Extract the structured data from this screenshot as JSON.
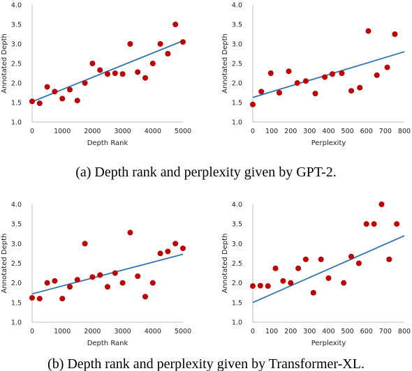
{
  "captions": {
    "a": "(a)  Depth rank and perplexity given by GPT-2.",
    "b": "(b)  Depth rank and perplexity given by Transformer-XL."
  },
  "colors": {
    "point": "#c00000",
    "trend": "#2e75b6",
    "axis": "#bfbfbf"
  },
  "chart_data": [
    {
      "type": "scatter",
      "xlabel": "Depth Rank",
      "ylabel": "Annotated Depth",
      "xlim": [
        0,
        5000
      ],
      "ylim": [
        1.0,
        4.0
      ],
      "xticks": [
        "0",
        "1000",
        "2000",
        "3000",
        "4000",
        "5000"
      ],
      "yticks": [
        "1.0",
        "1.5",
        "2.0",
        "2.5",
        "3.0",
        "3.5",
        "4.0"
      ],
      "trendline": [
        [
          0,
          1.52
        ],
        [
          5000,
          3.08
        ]
      ],
      "x": [
        0,
        250,
        500,
        750,
        1000,
        1250,
        1500,
        1750,
        2000,
        2250,
        2500,
        2750,
        3000,
        3250,
        3500,
        3750,
        4000,
        4250,
        4500,
        4750,
        5000
      ],
      "y": [
        1.53,
        1.48,
        1.9,
        1.78,
        1.6,
        1.83,
        1.55,
        2.0,
        2.5,
        2.33,
        2.23,
        2.25,
        2.23,
        3.0,
        2.28,
        2.13,
        2.5,
        3.0,
        2.75,
        3.5,
        3.05
      ]
    },
    {
      "type": "scatter",
      "xlabel": "Perplexity",
      "ylabel": "Annotated Depth",
      "xlim": [
        0,
        800
      ],
      "ylim": [
        1.0,
        4.0
      ],
      "xticks": [
        "0",
        "100",
        "200",
        "300",
        "400",
        "500",
        "600",
        "700",
        "800"
      ],
      "yticks": [
        "1.0",
        "1.5",
        "2.0",
        "2.5",
        "3.0",
        "3.5",
        "4.0"
      ],
      "trendline": [
        [
          0,
          1.63
        ],
        [
          800,
          2.8
        ]
      ],
      "x": [
        0,
        45,
        95,
        140,
        190,
        235,
        280,
        330,
        380,
        420,
        470,
        520,
        565,
        610,
        655,
        710,
        750
      ],
      "y": [
        1.45,
        1.78,
        2.25,
        1.75,
        2.3,
        2.0,
        2.05,
        1.73,
        2.15,
        2.23,
        2.25,
        1.8,
        1.88,
        3.33,
        2.2,
        2.4,
        3.25
      ]
    },
    {
      "type": "scatter",
      "xlabel": "Depth Rank",
      "ylabel": "Annotated Depth",
      "xlim": [
        0,
        5000
      ],
      "ylim": [
        1.0,
        4.0
      ],
      "xticks": [
        "0",
        "1000",
        "2000",
        "3000",
        "4000",
        "5000"
      ],
      "yticks": [
        "1.0",
        "1.5",
        "2.0",
        "2.5",
        "3.0",
        "3.5",
        "4.0"
      ],
      "trendline": [
        [
          0,
          1.72
        ],
        [
          5000,
          2.73
        ]
      ],
      "x": [
        0,
        250,
        500,
        750,
        1000,
        1250,
        1500,
        1750,
        2000,
        2250,
        2500,
        2750,
        3000,
        3250,
        3500,
        3750,
        4000,
        4250,
        4500,
        4750,
        5000
      ],
      "y": [
        1.62,
        1.6,
        2.0,
        2.05,
        1.6,
        1.9,
        2.08,
        3.0,
        2.15,
        2.2,
        1.9,
        2.25,
        2.0,
        3.28,
        2.17,
        1.65,
        2.0,
        2.75,
        2.8,
        3.0,
        2.88
      ]
    },
    {
      "type": "scatter",
      "xlabel": "Perplexity",
      "ylabel": "Annotated Depth",
      "xlim": [
        0,
        800
      ],
      "ylim": [
        1.0,
        4.0
      ],
      "xticks": [
        "0",
        "100",
        "200",
        "300",
        "400",
        "500",
        "600",
        "700",
        "800"
      ],
      "yticks": [
        "1.0",
        "1.5",
        "2.0",
        "2.5",
        "3.0",
        "3.5",
        "4.0"
      ],
      "trendline": [
        [
          0,
          1.5
        ],
        [
          800,
          3.2
        ]
      ],
      "x": [
        0,
        40,
        80,
        120,
        160,
        200,
        240,
        280,
        320,
        360,
        400,
        480,
        520,
        560,
        600,
        640,
        680,
        720,
        760
      ],
      "y": [
        1.92,
        1.93,
        1.92,
        2.37,
        2.05,
        2.0,
        2.37,
        2.6,
        1.75,
        2.6,
        2.12,
        2.0,
        2.67,
        2.5,
        3.5,
        3.5,
        4.0,
        2.6,
        3.5
      ]
    }
  ]
}
